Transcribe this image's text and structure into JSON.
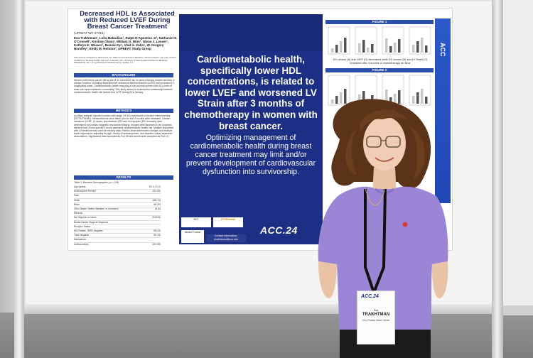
{
  "poster": {
    "title": "Decreased HDL is Associated with Reduced LVEF During Breast Cancer Treatment",
    "abstract_id": "(UPBEAT WF-97415)",
    "authors": "Eva Trakhtman¹, Leila Mabudian¹, Ralph D'Agostino Jr², Nathaniel S. O'Connell², Kristine Olson³, William O. Ntim², Glenn J. Lesser², Kathryn E. Weaver², Bonnie Ky⁴, Vlad G. Zaha⁵, W. Gregory Hundley¹, Emily M. Hotston¹, UPBEAT Study Group",
    "affiliations": "VCU School of Medicine, Richmond, VA; Wake Forest School of Medicine, Winston-Salem, NC; NCI; School of Medicine, Nevada Health Campus, Charlotte, NC; University of Pennsylvania School of Medicine, Philadelphia, PA; UT Southwestern Medical Center, Dallas, TX",
    "sections": {
      "background": "BACKGROUND",
      "methods": "METHODS",
      "results": "RESULTS"
    },
    "background_text": "Women with breast cancer (BCa) are at an increased risk of cancer therapy-related declines in cardiac function, including decreased left ventricular ejection fraction (LVEF) and increased LV longitudinal strain. Cardiometabolic health may play a role as most women with BCa have at least one cardiometabolic comorbidity. This study aimed to examine the relationship between cardiometabolic health risk factors and LVEF during BCa therapy.",
    "methods_text": "Ancillary analysis included women with stage I-III BCa scheduled to receive chemotherapy (NCT02791581). Measurements were taken prior to and 3 months after treatment. Cardiac measures (LVEF, LV strain, and diastolic (ED) and end systolic (ES) volumes) were determined via cardiac magnetic resonance imaging. Images were assessed in an unpaired, blinded read. A less-specific z-score assessed cardiometabolic health risk. Multiple imputation with 20 iterations was used for missing data. Paired t-tests determined changes and multiple linear regressions adjusting for age, receipt of anthracyclines, and baseline values assessed associations. Significance was accepted as P≤0.05 and trends were accepted as P≤0.10.",
    "results_caption": "Table 1: Baseline Demographics (n = 228)",
    "results_rows": [
      "Age (years)",
      "Anthracycline Receipt",
      "Race",
      "White",
      "Black",
      "Other (Asian, Native Hawaiian, or Unknown)",
      "Ethnicity",
      "Not Hispanic or Latino",
      "Breast Cancer Stage at Diagnosis",
      "Receptor Status",
      "HR-Positive, HER2-Negative",
      "Triple Negative",
      "Medications",
      "Anthracyclines",
      "Antihypertensives"
    ],
    "results_values": [
      "52.6 ± 11.5",
      "102 (45)",
      "",
      "168 (74)",
      "46 (20)",
      "14 (6)",
      "",
      "215 (94)",
      "",
      "",
      "98 (43)",
      "35 (15)",
      "",
      "102 (45)",
      "48 (21)"
    ],
    "center_main": "Cardiometabolic health, specifically lower HDL concentrations, is related to lower LVEF and worsened LV Strain after 3 months of chemotherapy in women with breast cancer.",
    "center_sub": "Optimizing management of cardiometabolic health during breast cancer treatment may limit and/or prevent development of cardiovascular dysfunction into survivorship.",
    "logos": [
      "NCI",
      "VCUHealth",
      "Wake Forest",
      "Contact information:"
    ],
    "contact_email": "etrakhtman@vcu.edu",
    "acc_mark": "ACC.24",
    "figure1_label": "FIGURE 1",
    "figure1_caption": "ED volume (A) and LVEF (D) decreased while ES volume (B) and LV Strain (C) increased after 3 months of chemotherapy for BCa.",
    "figure2_label": "FIGURE 2",
    "stripe_text": "ACC"
  },
  "badge": {
    "logo": "ACC.24",
    "first_name": "Eva",
    "last_name": "TRAKHTMAN",
    "org": "VCU Pauley Heart Center"
  },
  "colors": {
    "poster_navy": "#1d2f84",
    "section_blue": "#2b4fa8",
    "shirt_lavender": "#9b86d6"
  }
}
